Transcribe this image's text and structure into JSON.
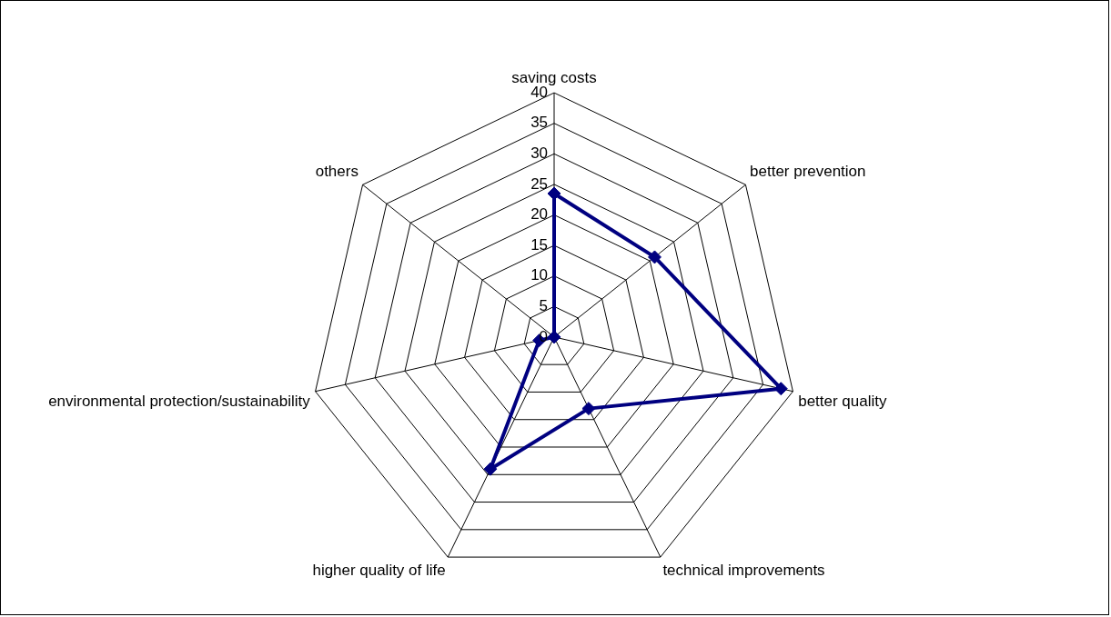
{
  "chart_data": {
    "type": "radar",
    "categories": [
      "saving costs",
      "better prevention",
      "better quality",
      "technical improvements",
      "higher quality of life",
      "environmental protection/sustainability",
      "others"
    ],
    "series": [
      {
        "color": "#000080",
        "values": [
          23.5,
          21,
          38,
          13,
          24,
          2.5,
          0
        ]
      }
    ],
    "ylim": [
      0,
      40
    ],
    "yticks": [
      0,
      5,
      10,
      15,
      20,
      25,
      30,
      35,
      40
    ],
    "grid": true,
    "marker": "diamond",
    "line_style": "solid"
  }
}
